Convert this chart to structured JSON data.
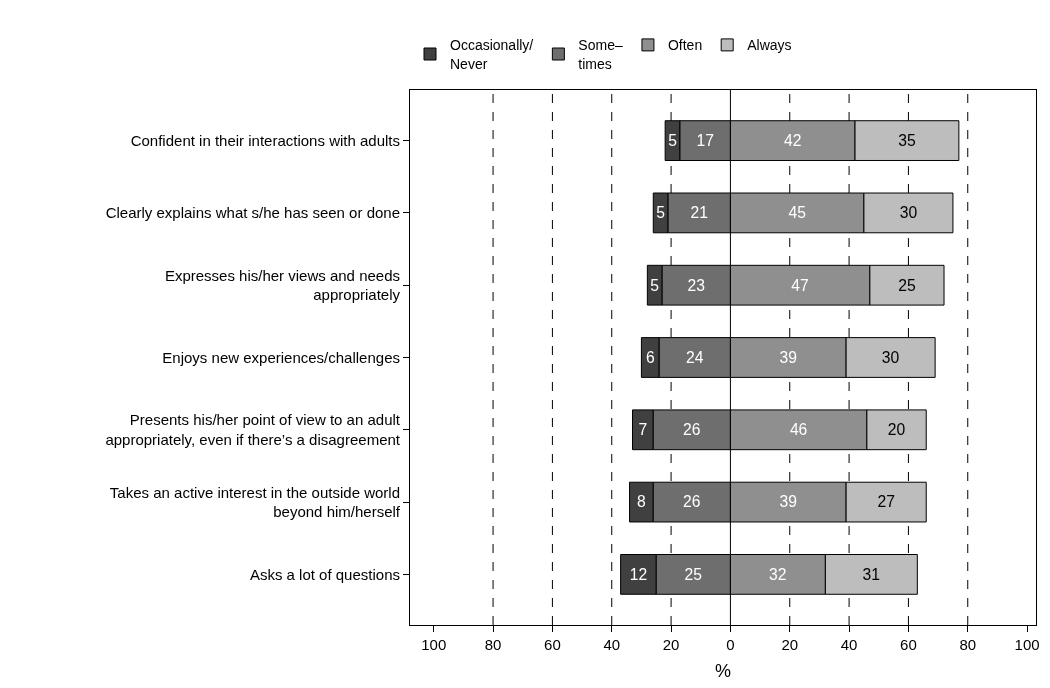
{
  "chart_data": {
    "type": "bar",
    "orientation": "horizontal",
    "data_labels": true,
    "xlabel": "%",
    "categories": [
      "Confident in their interactions with adults",
      "Clearly explains what s/he has seen or done",
      "Expresses his/her views and needs\nappropriately",
      "Enjoys new experiences/challenges",
      "Presents his/her point of view to an adult\nappropriately, even if there’s a disagreement",
      "Takes an active interest in the outside world\nbeyond him/herself",
      "Asks a lot of questions"
    ],
    "series": [
      {
        "name": "Occasionally/\nNever",
        "color": "#404040",
        "values": [
          5,
          5,
          5,
          6,
          7,
          8,
          12
        ],
        "base": [
          -22,
          -26,
          -28,
          -30,
          -33,
          -34,
          -37
        ]
      },
      {
        "name": "Some–\ntimes",
        "color": "#6e6e6e",
        "values": [
          17,
          21,
          23,
          24,
          26,
          26,
          25
        ],
        "base": [
          -17,
          -21,
          -23,
          -24,
          -26,
          -26,
          -25
        ]
      },
      {
        "name": "Often",
        "color": "#8f8f8f",
        "values": [
          42,
          45,
          47,
          39,
          46,
          39,
          32
        ],
        "base": [
          0,
          0,
          0,
          0,
          0,
          0,
          0
        ]
      },
      {
        "name": "Always",
        "color": "#bdbdbd",
        "values": [
          35,
          30,
          25,
          30,
          20,
          27,
          31
        ],
        "base": [
          42,
          45,
          47,
          39,
          46,
          39,
          32
        ]
      }
    ],
    "xlim": [
      -108,
      103
    ],
    "xticks": [
      {
        "value": -100,
        "label": "100"
      },
      {
        "value": -80,
        "label": "80"
      },
      {
        "value": -60,
        "label": "60"
      },
      {
        "value": -40,
        "label": "40"
      },
      {
        "value": -20,
        "label": "20"
      },
      0,
      20,
      40,
      60,
      80,
      100
    ],
    "ref_lines": [
      {
        "axis": "x",
        "value": -80,
        "line_style": "dashed"
      },
      {
        "axis": "x",
        "value": -60,
        "line_style": "dashed"
      },
      {
        "axis": "x",
        "value": -40,
        "line_style": "dashed"
      },
      {
        "axis": "x",
        "value": -20,
        "line_style": "dashed"
      },
      {
        "axis": "x",
        "value": 0,
        "line_style": "solid"
      },
      {
        "axis": "x",
        "value": 20,
        "line_style": "dashed"
      },
      {
        "axis": "x",
        "value": 40,
        "line_style": "dashed"
      },
      {
        "axis": "x",
        "value": 60,
        "line_style": "dashed"
      },
      {
        "axis": "x",
        "value": 80,
        "line_style": "dashed"
      }
    ],
    "grid": false,
    "legend": "top"
  }
}
